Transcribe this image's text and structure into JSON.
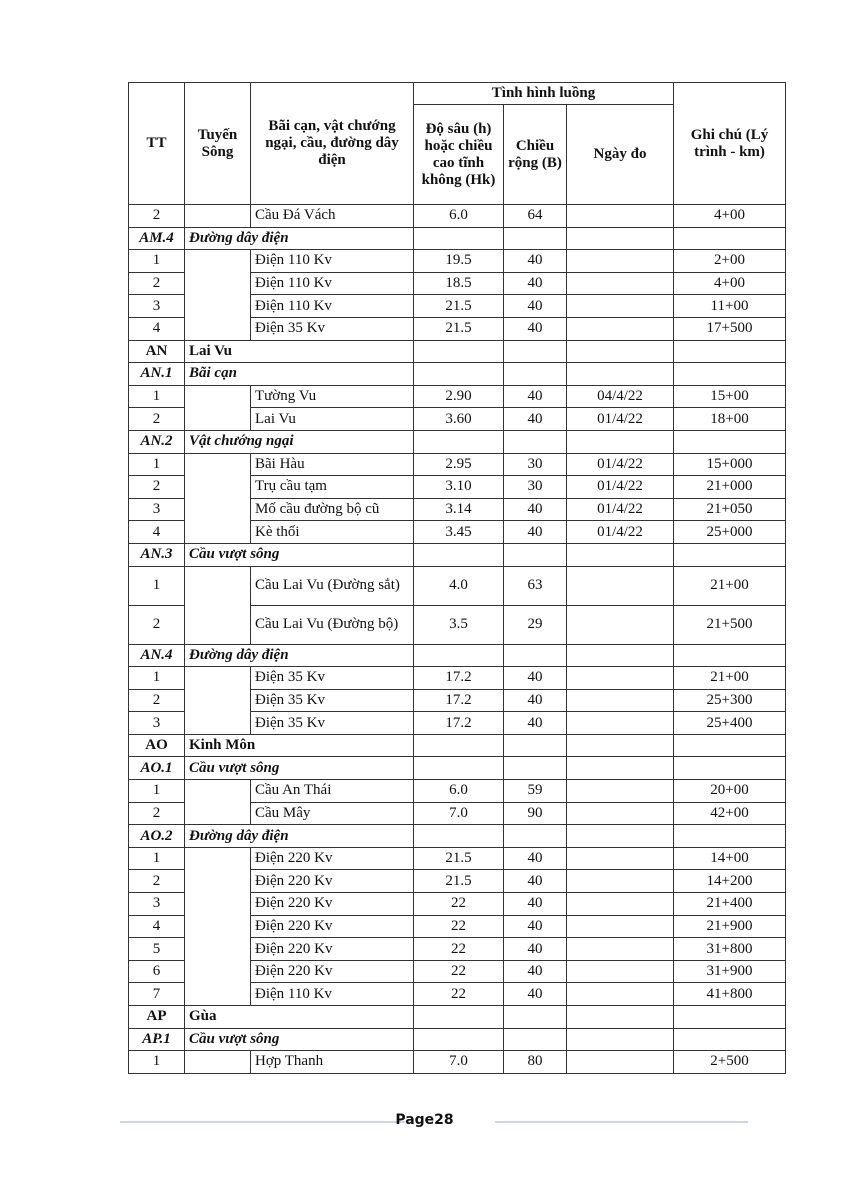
{
  "table": {
    "headers": {
      "tt": "TT",
      "tuyen_song": "Tuyến Sông",
      "bai_can": "Bãi cạn, vật chướng ngại, cầu, đường dây điện",
      "tinh_hinh_luong": "Tình hình luồng",
      "do_sau": "Độ sâu (h) hoặc chiều cao tĩnh không (Hk)",
      "chieu_rong": "Chiều rộng (B)",
      "ngay_do": "Ngày đo",
      "ghi_chu": "Ghi chú (Lý trình - km)"
    },
    "blocks": [
      {
        "kind": "items",
        "items": [
          {
            "tt": "2",
            "name": "Cầu Đá Vách",
            "depth": "6.0",
            "width": "64",
            "date": "",
            "km": "4+00"
          }
        ]
      },
      {
        "kind": "group",
        "code": "AM.4",
        "name": "Đường dây điện"
      },
      {
        "kind": "items",
        "items": [
          {
            "tt": "1",
            "name": "Điện 110 Kv",
            "depth": "19.5",
            "width": "40",
            "date": "",
            "km": "2+00"
          },
          {
            "tt": "2",
            "name": "Điện 110 Kv",
            "depth": "18.5",
            "width": "40",
            "date": "",
            "km": "4+00"
          },
          {
            "tt": "3",
            "name": "Điện 110 Kv",
            "depth": "21.5",
            "width": "40",
            "date": "",
            "km": "11+00"
          },
          {
            "tt": "4",
            "name": "Điện 35 Kv",
            "depth": "21.5",
            "width": "40",
            "date": "",
            "km": "17+500"
          }
        ]
      },
      {
        "kind": "river",
        "code": "AN",
        "name": "Lai Vu"
      },
      {
        "kind": "group",
        "code": "AN.1",
        "name": "Bãi cạn"
      },
      {
        "kind": "items",
        "items": [
          {
            "tt": "1",
            "name": "Tường Vu",
            "depth": "2.90",
            "width": "40",
            "date": "04/4/22",
            "km": "15+00"
          },
          {
            "tt": "2",
            "name": "Lai Vu",
            "depth": "3.60",
            "width": "40",
            "date": "01/4/22",
            "km": "18+00"
          }
        ]
      },
      {
        "kind": "group",
        "code": "AN.2",
        "name": "Vật chướng ngại"
      },
      {
        "kind": "items",
        "items": [
          {
            "tt": "1",
            "name": "Bãi Hàu",
            "depth": "2.95",
            "width": "30",
            "date": "01/4/22",
            "km": "15+000"
          },
          {
            "tt": "2",
            "name": "Trụ cầu tạm",
            "depth": "3.10",
            "width": "30",
            "date": "01/4/22",
            "km": "21+000"
          },
          {
            "tt": "3",
            "name": "Mố cầu đường bộ cũ",
            "depth": "3.14",
            "width": "40",
            "date": "01/4/22",
            "km": "21+050"
          },
          {
            "tt": "4",
            "name": "Kè thối",
            "depth": "3.45",
            "width": "40",
            "date": "01/4/22",
            "km": "25+000"
          }
        ]
      },
      {
        "kind": "group",
        "code": "AN.3",
        "name": "Cầu vượt sông"
      },
      {
        "kind": "items",
        "tall": true,
        "items": [
          {
            "tt": "1",
            "name": "Cầu Lai Vu (Đường sắt)",
            "depth": "4.0",
            "width": "63",
            "date": "",
            "km": "21+00"
          },
          {
            "tt": "2",
            "name": "Cầu Lai Vu (Đường bộ)",
            "depth": "3.5",
            "width": "29",
            "date": "",
            "km": "21+500"
          }
        ]
      },
      {
        "kind": "group",
        "code": "AN.4",
        "name": "Đường dây điện"
      },
      {
        "kind": "items",
        "items": [
          {
            "tt": "1",
            "name": "Điện 35 Kv",
            "depth": "17.2",
            "width": "40",
            "date": "",
            "km": "21+00"
          },
          {
            "tt": "2",
            "name": "Điện 35 Kv",
            "depth": "17.2",
            "width": "40",
            "date": "",
            "km": "25+300"
          },
          {
            "tt": "3",
            "name": "Điện 35 Kv",
            "depth": "17.2",
            "width": "40",
            "date": "",
            "km": "25+400"
          }
        ]
      },
      {
        "kind": "river",
        "code": "AO",
        "name": "Kinh Môn"
      },
      {
        "kind": "group",
        "code": "AO.1",
        "name": "Cầu vượt sông"
      },
      {
        "kind": "items",
        "items": [
          {
            "tt": "1",
            "name": "Cầu An Thái",
            "depth": "6.0",
            "width": "59",
            "date": "",
            "km": "20+00"
          },
          {
            "tt": "2",
            "name": "Cầu Mây",
            "depth": "7.0",
            "width": "90",
            "date": "",
            "km": "42+00"
          }
        ]
      },
      {
        "kind": "group",
        "code": "AO.2",
        "name": "Đường dây điện"
      },
      {
        "kind": "items",
        "items": [
          {
            "tt": "1",
            "name": "Điện 220 Kv",
            "depth": "21.5",
            "width": "40",
            "date": "",
            "km": "14+00"
          },
          {
            "tt": "2",
            "name": "Điện 220 Kv",
            "depth": "21.5",
            "width": "40",
            "date": "",
            "km": "14+200"
          },
          {
            "tt": "3",
            "name": "Điện 220 Kv",
            "depth": "22",
            "width": "40",
            "date": "",
            "km": "21+400"
          },
          {
            "tt": "4",
            "name": "Điện 220 Kv",
            "depth": "22",
            "width": "40",
            "date": "",
            "km": "21+900"
          },
          {
            "tt": "5",
            "name": "Điện 220 Kv",
            "depth": "22",
            "width": "40",
            "date": "",
            "km": "31+800"
          },
          {
            "tt": "6",
            "name": "Điện 220 Kv",
            "depth": "22",
            "width": "40",
            "date": "",
            "km": "31+900"
          },
          {
            "tt": "7",
            "name": "Điện 110 Kv",
            "depth": "22",
            "width": "40",
            "date": "",
            "km": "41+800"
          }
        ]
      },
      {
        "kind": "river",
        "code": "AP",
        "name": "Gùa"
      },
      {
        "kind": "group",
        "code": "AP.1",
        "name": "Cầu vượt sông"
      },
      {
        "kind": "items",
        "items": [
          {
            "tt": "1",
            "name": "Hợp Thanh",
            "depth": "7.0",
            "width": "80",
            "date": "",
            "km": "2+500"
          }
        ]
      }
    ]
  },
  "footer": {
    "page_label": "Page28"
  }
}
